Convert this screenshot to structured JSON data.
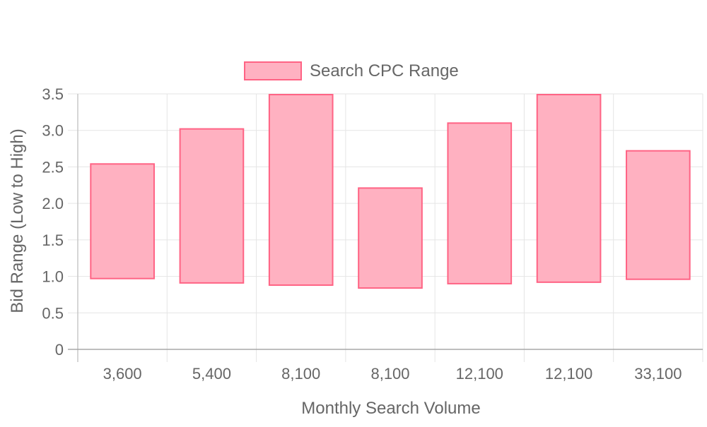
{
  "chart_data": {
    "type": "floating-bar",
    "title": "",
    "legend": {
      "position": "top",
      "entries": [
        "Search CPC Range"
      ]
    },
    "xlabel": "Monthly Search Volume",
    "ylabel": "Bid Range (Low to High)",
    "ylim": [
      0,
      3.5
    ],
    "y_ticks": [
      "0",
      "0.5",
      "1.0",
      "1.5",
      "2.0",
      "2.5",
      "3.0",
      "3.5"
    ],
    "y_tick_values": [
      0,
      0.5,
      1.0,
      1.5,
      2.0,
      2.5,
      3.0,
      3.5
    ],
    "categories": [
      "3,600",
      "5,400",
      "8,100",
      "8,100",
      "12,100",
      "12,100",
      "33,100"
    ],
    "grid": true,
    "series": [
      {
        "name": "Search CPC Range",
        "fill_color": "#ffb1c1",
        "border_color": "#ff6384",
        "ranges": [
          [
            0.97,
            2.54
          ],
          [
            0.91,
            3.02
          ],
          [
            0.88,
            3.49
          ],
          [
            0.84,
            2.21
          ],
          [
            0.9,
            3.1
          ],
          [
            0.92,
            3.49
          ],
          [
            0.96,
            2.72
          ]
        ]
      }
    ]
  }
}
